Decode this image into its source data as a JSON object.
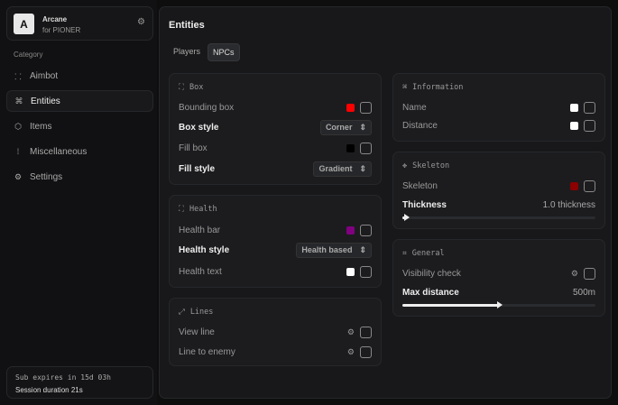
{
  "brand": {
    "name": "Arcane",
    "sub": "for PIONER",
    "logo": "A"
  },
  "sidebar": {
    "category": "Category",
    "items": [
      {
        "label": "Aimbot",
        "icon": "crosshair-icon"
      },
      {
        "label": "Entities",
        "icon": "entity-icon",
        "active": true
      },
      {
        "label": "Items",
        "icon": "box-icon"
      },
      {
        "label": "Miscellaneous",
        "icon": "misc-icon"
      },
      {
        "label": "Settings",
        "icon": "gear-icon"
      }
    ]
  },
  "subscription": {
    "expires": "Sub expires in 15d 03h",
    "session": "Session duration 21s"
  },
  "main": {
    "title": "Entities",
    "tabs": [
      "Players",
      "NPCs"
    ],
    "active_tab": "NPCs"
  },
  "box": {
    "title": "Box",
    "bounding": "Bounding box",
    "bounding_color": "#ff0000",
    "box_style": "Box style",
    "box_style_value": "Corner",
    "fill_box": "Fill box",
    "fill_color": "#000000",
    "fill_style": "Fill style",
    "fill_style_value": "Gradient"
  },
  "health": {
    "title": "Health",
    "bar": "Health bar",
    "bar_color": "#800080",
    "style": "Health style",
    "style_value": "Health based",
    "text": "Health text",
    "text_color": "#ffffff"
  },
  "lines": {
    "title": "Lines",
    "view": "View line",
    "enemy": "Line to enemy"
  },
  "info": {
    "title": "Information",
    "name": "Name",
    "name_color": "#ffffff",
    "distance": "Distance",
    "distance_color": "#ffffff"
  },
  "skeleton": {
    "title": "Skeleton",
    "label": "Skeleton",
    "color": "#8b0000",
    "thickness": "Thickness",
    "thickness_value": "1.0 thickness",
    "thickness_fraction": 0
  },
  "general": {
    "title": "General",
    "visibility": "Visibility check",
    "max": "Max distance",
    "max_value": "500m",
    "max_fraction": 0.5
  }
}
